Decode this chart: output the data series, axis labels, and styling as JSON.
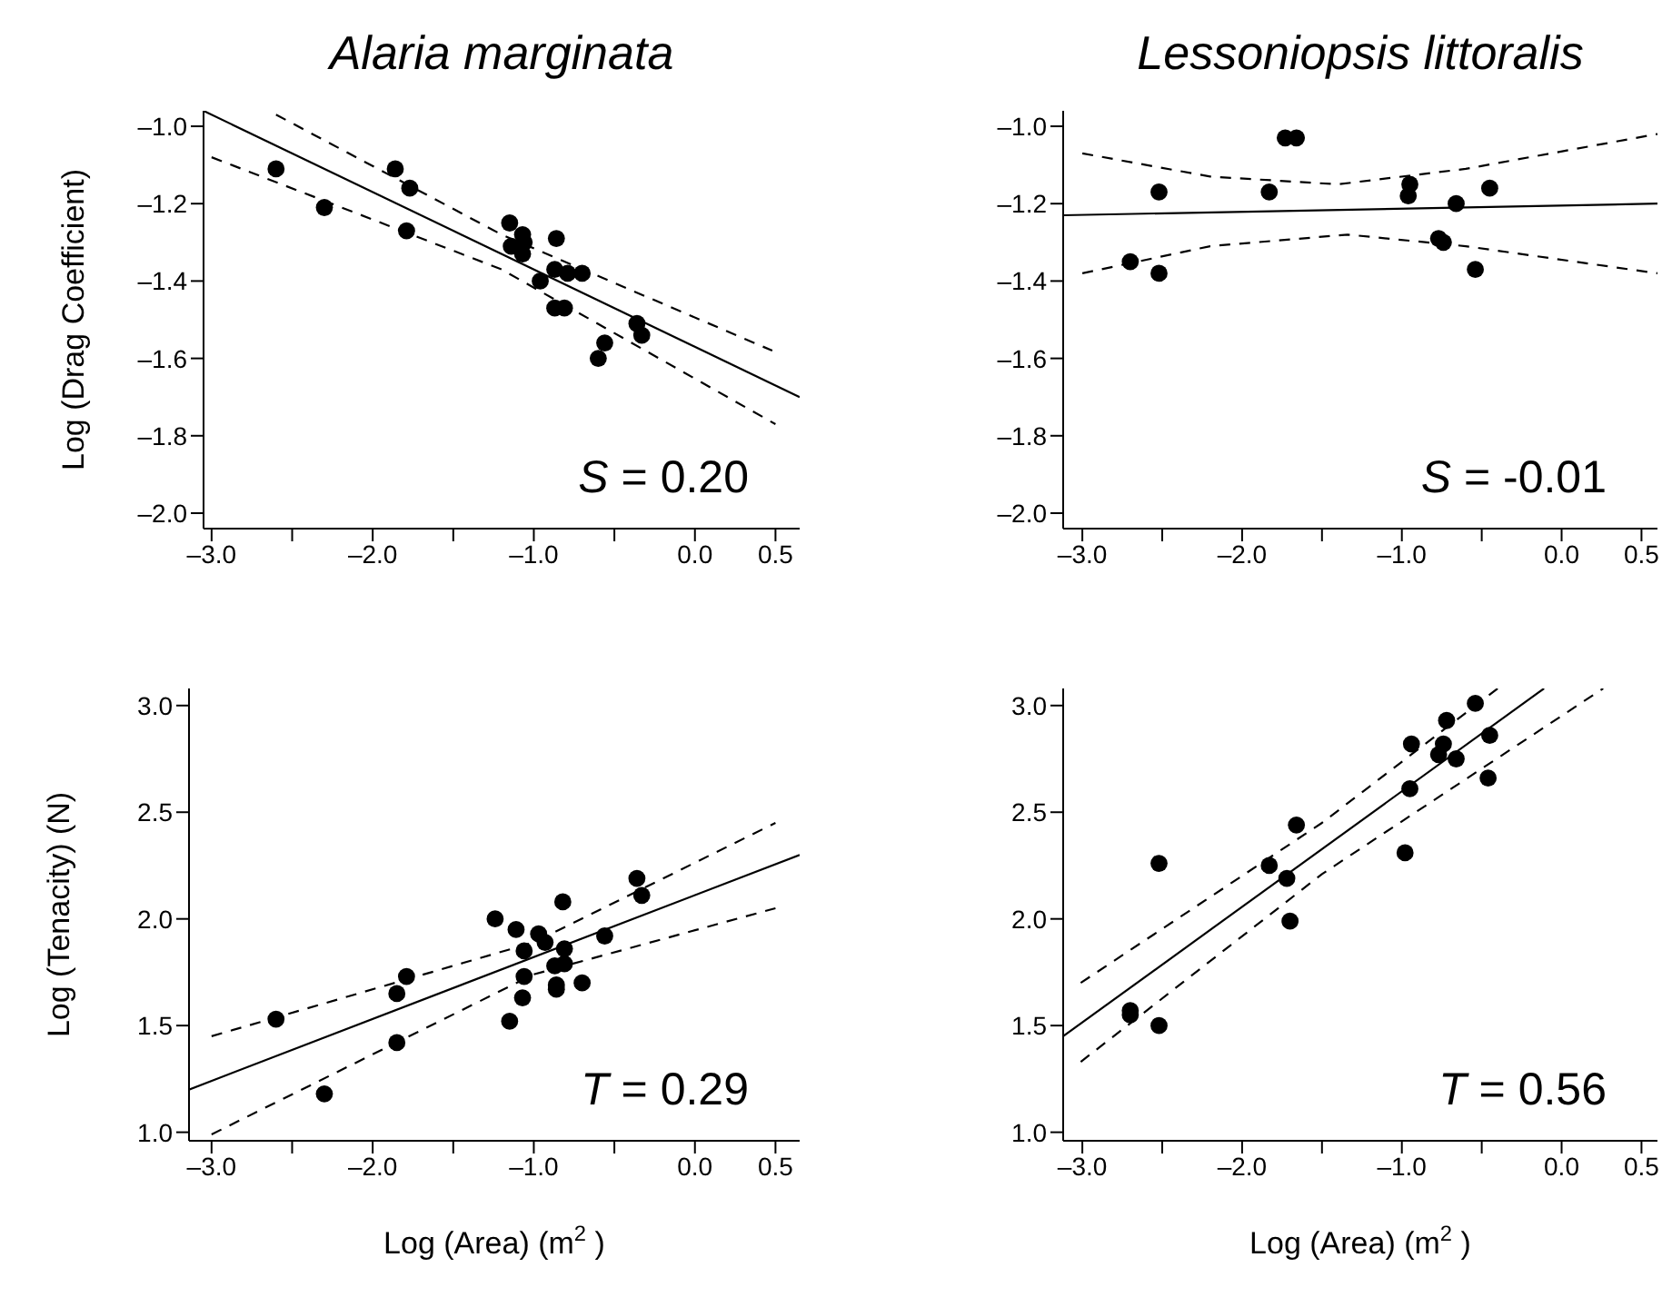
{
  "chart_data": [
    {
      "type": "scatter",
      "title": "Alaria marginata",
      "ylabel": "Log (Drag Coefficient)",
      "xlim": [
        -3.05,
        0.65
      ],
      "ylim": [
        -2.04,
        -0.96
      ],
      "xticks": [
        {
          "value": -3,
          "label": "–3.0"
        },
        {
          "value": -2.5,
          "label": null
        },
        {
          "value": -2,
          "label": "–2.0"
        },
        {
          "value": -1.5,
          "label": null
        },
        {
          "value": -1,
          "label": "–1.0"
        },
        {
          "value": -0.5,
          "label": null
        },
        {
          "value": 0,
          "label": "0.0"
        },
        {
          "value": 0.5,
          "label": "0.5"
        }
      ],
      "yticks": [
        {
          "value": -2,
          "label": "–2.0"
        },
        {
          "value": -1.8,
          "label": "–1.8"
        },
        {
          "value": -1.6,
          "label": "–1.6"
        },
        {
          "value": -1.4,
          "label": "–1.4"
        },
        {
          "value": -1.2,
          "label": "–1.2"
        },
        {
          "value": -1,
          "label": "–1.0"
        }
      ],
      "annotations": [
        "S = 0.20"
      ],
      "series": [
        {
          "color": "#000000",
          "marker": "circle",
          "x": [
            -2.6,
            -2.3,
            -1.86,
            -1.77,
            -1.79,
            -1.15,
            -1.07,
            -1.06,
            -1.14,
            -1.07,
            -0.86,
            -0.96,
            -0.87,
            -0.79,
            -0.7,
            -0.87,
            -0.81,
            -0.36,
            -0.33,
            -0.56,
            -0.6
          ],
          "values": [
            -1.11,
            -1.21,
            -1.11,
            -1.16,
            -1.27,
            -1.25,
            -1.28,
            -1.3,
            -1.31,
            -1.33,
            -1.29,
            -1.4,
            -1.37,
            -1.38,
            -1.38,
            -1.47,
            -1.47,
            -1.51,
            -1.54,
            -1.56,
            -1.6
          ]
        },
        {
          "type": "line",
          "color": "#000000",
          "line_style": "solid",
          "marker": "none",
          "x": [
            -3.05,
            0.65
          ],
          "values": [
            -0.96,
            -1.7
          ]
        },
        {
          "type": "line",
          "color": "#000000",
          "line_style": "dashed",
          "marker": "none",
          "x": [
            -2.6,
            -1.2,
            0.48
          ],
          "values": [
            -0.97,
            -1.28,
            -1.58
          ]
        },
        {
          "type": "line",
          "color": "#000000",
          "line_style": "dashed",
          "marker": "none",
          "x": [
            -3.0,
            -1.2,
            0.5
          ],
          "values": [
            -1.08,
            -1.37,
            -1.77
          ]
        }
      ]
    },
    {
      "type": "scatter",
      "title": "Lessoniopsis littoralis",
      "xlim": [
        -3.12,
        0.6
      ],
      "ylim": [
        -2.04,
        -0.96
      ],
      "xticks": [
        {
          "value": -3,
          "label": "–3.0"
        },
        {
          "value": -2.5,
          "label": null
        },
        {
          "value": -2,
          "label": "–2.0"
        },
        {
          "value": -1.5,
          "label": null
        },
        {
          "value": -1,
          "label": "–1.0"
        },
        {
          "value": -0.5,
          "label": null
        },
        {
          "value": 0,
          "label": "0.0"
        },
        {
          "value": 0.5,
          "label": "0.5"
        }
      ],
      "yticks": [
        {
          "value": -2,
          "label": "–2.0"
        },
        {
          "value": -1.8,
          "label": "–1.8"
        },
        {
          "value": -1.6,
          "label": "–1.6"
        },
        {
          "value": -1.4,
          "label": "–1.4"
        },
        {
          "value": -1.2,
          "label": "–1.2"
        },
        {
          "value": -1,
          "label": "–1.0"
        }
      ],
      "annotations": [
        "S = -0.01"
      ],
      "series": [
        {
          "color": "#000000",
          "marker": "circle",
          "x": [
            -2.52,
            -2.7,
            -2.52,
            -1.83,
            -1.73,
            -1.66,
            -0.95,
            -0.96,
            -0.66,
            -0.45,
            -0.77,
            -0.74,
            -0.54
          ],
          "values": [
            -1.17,
            -1.35,
            -1.38,
            -1.17,
            -1.03,
            -1.03,
            -1.15,
            -1.18,
            -1.2,
            -1.16,
            -1.29,
            -1.3,
            -1.37
          ]
        },
        {
          "type": "line",
          "color": "#000000",
          "line_style": "solid",
          "marker": "none",
          "x": [
            -3.12,
            0.6
          ],
          "values": [
            -1.23,
            -1.2
          ]
        },
        {
          "type": "line",
          "color": "#000000",
          "line_style": "dashed",
          "marker": "none",
          "x": [
            -3.0,
            -2.2,
            -1.4,
            -0.6,
            0.6
          ],
          "values": [
            -1.07,
            -1.13,
            -1.15,
            -1.11,
            -1.02
          ]
        },
        {
          "type": "line",
          "color": "#000000",
          "line_style": "dashed",
          "marker": "none",
          "x": [
            -3.0,
            -2.2,
            -1.34,
            -0.6,
            0.6
          ],
          "values": [
            -1.38,
            -1.31,
            -1.28,
            -1.31,
            -1.38
          ]
        }
      ]
    },
    {
      "type": "scatter",
      "ylabel": "Log (Tenacity) (N)",
      "xlabel": "Log (Area) (m$^{2}$)",
      "xlim": [
        -3.14,
        0.65
      ],
      "ylim": [
        0.96,
        3.08
      ],
      "xticks": [
        {
          "value": -3,
          "label": "–3.0"
        },
        {
          "value": -2.5,
          "label": null
        },
        {
          "value": -2,
          "label": "–2.0"
        },
        {
          "value": -1.5,
          "label": null
        },
        {
          "value": -1,
          "label": "–1.0"
        },
        {
          "value": -0.5,
          "label": null
        },
        {
          "value": 0,
          "label": "0.0"
        },
        {
          "value": 0.5,
          "label": "0.5"
        }
      ],
      "yticks": [
        {
          "value": 1,
          "label": "1.0"
        },
        {
          "value": 1.5,
          "label": "1.5"
        },
        {
          "value": 2,
          "label": "2.0"
        },
        {
          "value": 2.5,
          "label": "2.5"
        },
        {
          "value": 3,
          "label": "3.0"
        }
      ],
      "annotations": [
        "T = 0.29"
      ],
      "series": [
        {
          "color": "#000000",
          "marker": "circle",
          "x": [
            -2.6,
            -2.3,
            -1.85,
            -1.79,
            -1.85,
            -1.24,
            -1.11,
            -0.97,
            -0.93,
            -1.06,
            -0.82,
            -1.06,
            -1.07,
            -1.15,
            -0.81,
            -0.87,
            -0.81,
            -0.86,
            -0.86,
            -0.7,
            -0.56,
            -0.36,
            -0.33
          ],
          "values": [
            1.53,
            1.18,
            1.65,
            1.73,
            1.42,
            2.0,
            1.95,
            1.93,
            1.89,
            1.85,
            2.08,
            1.73,
            1.63,
            1.52,
            1.86,
            1.78,
            1.79,
            1.69,
            1.67,
            1.7,
            1.92,
            2.19,
            2.11
          ]
        },
        {
          "type": "line",
          "color": "#000000",
          "line_style": "solid",
          "marker": "none",
          "x": [
            -3.14,
            0.65
          ],
          "values": [
            1.2,
            2.3
          ]
        },
        {
          "type": "line",
          "color": "#000000",
          "line_style": "dashed",
          "marker": "none",
          "x": [
            -3.0,
            -1.0,
            0.5
          ],
          "values": [
            1.45,
            1.89,
            2.45
          ]
        },
        {
          "type": "line",
          "color": "#000000",
          "line_style": "dashed",
          "marker": "none",
          "x": [
            -3.0,
            -1.0,
            0.5
          ],
          "values": [
            0.99,
            1.74,
            2.05
          ]
        }
      ]
    },
    {
      "type": "scatter",
      "xlabel": "Log (Area) (m$^{2}$)",
      "xlim": [
        -3.12,
        0.6
      ],
      "ylim": [
        0.96,
        3.08
      ],
      "xticks": [
        {
          "value": -3,
          "label": "–3.0"
        },
        {
          "value": -2.5,
          "label": null
        },
        {
          "value": -2,
          "label": "–2.0"
        },
        {
          "value": -1.5,
          "label": null
        },
        {
          "value": -1,
          "label": "–1.0"
        },
        {
          "value": -0.5,
          "label": null
        },
        {
          "value": 0,
          "label": "0.0"
        },
        {
          "value": 0.5,
          "label": "0.5"
        }
      ],
      "yticks": [
        {
          "value": 1,
          "label": "1.0"
        },
        {
          "value": 1.5,
          "label": "1.5"
        },
        {
          "value": 2,
          "label": "2.0"
        },
        {
          "value": 2.5,
          "label": "2.5"
        },
        {
          "value": 3,
          "label": "3.0"
        }
      ],
      "annotations": [
        "T = 0.56"
      ],
      "series": [
        {
          "color": "#000000",
          "marker": "circle",
          "x": [
            -2.7,
            -2.7,
            -2.52,
            -2.52,
            -1.83,
            -1.72,
            -1.66,
            -1.7,
            -0.98,
            -0.95,
            -0.94,
            -0.77,
            -0.74,
            -0.72,
            -0.66,
            -0.54,
            -0.45,
            -0.46
          ],
          "values": [
            1.57,
            1.55,
            1.5,
            2.26,
            2.25,
            2.19,
            2.44,
            1.99,
            2.31,
            2.61,
            2.82,
            2.77,
            2.82,
            2.93,
            2.75,
            3.01,
            2.86,
            2.66
          ]
        },
        {
          "type": "line",
          "color": "#000000",
          "line_style": "solid",
          "marker": "none",
          "x": [
            -3.12,
            -0.11
          ],
          "values": [
            1.45,
            3.08
          ]
        },
        {
          "type": "line",
          "color": "#000000",
          "line_style": "dashed",
          "marker": "none",
          "x": [
            -3.01,
            -1.5,
            -0.4
          ],
          "values": [
            1.7,
            2.45,
            3.08
          ]
        },
        {
          "type": "line",
          "color": "#000000",
          "line_style": "dashed",
          "marker": "none",
          "x": [
            -3.01,
            -1.5,
            0.26
          ],
          "values": [
            1.33,
            2.21,
            3.08
          ]
        }
      ]
    }
  ]
}
